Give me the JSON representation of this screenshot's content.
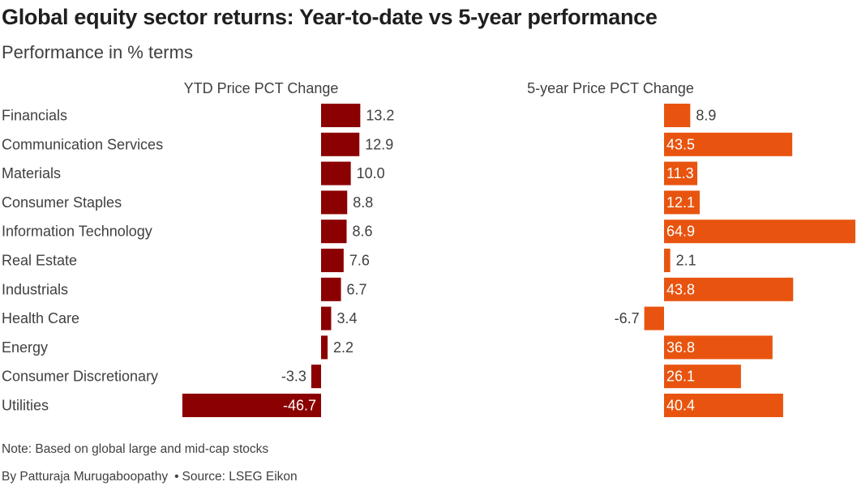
{
  "header": {
    "title": "Global equity sector returns: Year-to-date vs 5-year performance",
    "subtitle": "Performance in % terms"
  },
  "footer": {
    "note": "Note: Based on global large and mid-cap stocks",
    "byline": "By Patturaja Murugaboopathy",
    "source": "Source: LSEG Eikon"
  },
  "colors": {
    "ytd": "#8b0000",
    "five_year": "#e8540f",
    "text": "#404040"
  },
  "chart_data": {
    "type": "bar",
    "orientation": "horizontal",
    "categories": [
      "Financials",
      "Communication Services",
      "Materials",
      "Consumer Staples",
      "Information Technology",
      "Real Estate",
      "Industrials",
      "Health Care",
      "Energy",
      "Consumer Discretionary",
      "Utilities"
    ],
    "series": [
      {
        "name": "YTD Price PCT Change",
        "values": [
          13.2,
          12.9,
          10.0,
          8.8,
          8.6,
          7.6,
          6.7,
          3.4,
          2.2,
          -3.3,
          -46.7
        ],
        "labels": [
          "13.2",
          "12.9",
          "10.0",
          "8.8",
          "8.6",
          "7.6",
          "6.7",
          "3.4",
          "2.2",
          "-3.3",
          "-46.7"
        ]
      },
      {
        "name": "5-year Price PCT Change",
        "values": [
          8.9,
          43.5,
          11.3,
          12.1,
          64.9,
          2.1,
          43.8,
          -6.7,
          36.8,
          26.1,
          40.4
        ],
        "labels": [
          "8.9",
          "43.5",
          "11.3",
          "12.1",
          "64.9",
          "2.1",
          "43.8",
          "-6.7",
          "36.8",
          "26.1",
          "40.4"
        ]
      }
    ],
    "grid": false,
    "legend": "none"
  }
}
